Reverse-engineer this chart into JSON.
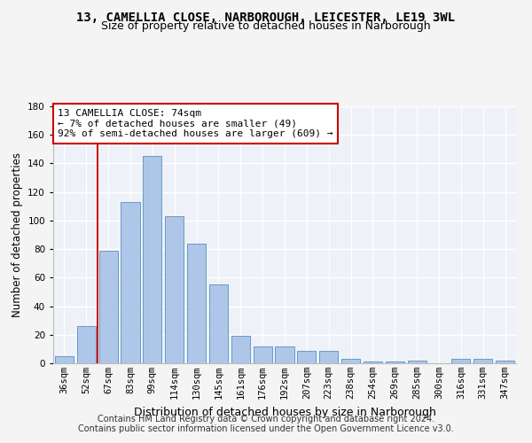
{
  "title": "13, CAMELLIA CLOSE, NARBOROUGH, LEICESTER, LE19 3WL",
  "subtitle": "Size of property relative to detached houses in Narborough",
  "xlabel": "Distribution of detached houses by size in Narborough",
  "ylabel": "Number of detached properties",
  "categories": [
    "36sqm",
    "52sqm",
    "67sqm",
    "83sqm",
    "99sqm",
    "114sqm",
    "130sqm",
    "145sqm",
    "161sqm",
    "176sqm",
    "192sqm",
    "207sqm",
    "223sqm",
    "238sqm",
    "254sqm",
    "269sqm",
    "285sqm",
    "300sqm",
    "316sqm",
    "331sqm",
    "347sqm"
  ],
  "values": [
    5,
    26,
    79,
    113,
    145,
    103,
    84,
    55,
    19,
    12,
    12,
    9,
    9,
    3,
    1,
    1,
    2,
    0,
    3,
    3,
    2
  ],
  "bar_color": "#aec6e8",
  "bar_edge_color": "#5a8fc0",
  "vline_x": 1.5,
  "vline_color": "#cc0000",
  "annotation_text": "13 CAMELLIA CLOSE: 74sqm\n← 7% of detached houses are smaller (49)\n92% of semi-detached houses are larger (609) →",
  "annotation_box_color": "#ffffff",
  "annotation_box_edge": "#cc0000",
  "ylim": [
    0,
    180
  ],
  "yticks": [
    0,
    20,
    40,
    60,
    80,
    100,
    120,
    140,
    160,
    180
  ],
  "footer1": "Contains HM Land Registry data © Crown copyright and database right 2024.",
  "footer2": "Contains public sector information licensed under the Open Government Licence v3.0.",
  "bg_color": "#eef2f8",
  "grid_color": "#ffffff",
  "title_fontsize": 10,
  "subtitle_fontsize": 9,
  "xlabel_fontsize": 9,
  "ylabel_fontsize": 8.5,
  "tick_fontsize": 7.5,
  "footer_fontsize": 7,
  "fig_bg": "#f4f4f4"
}
